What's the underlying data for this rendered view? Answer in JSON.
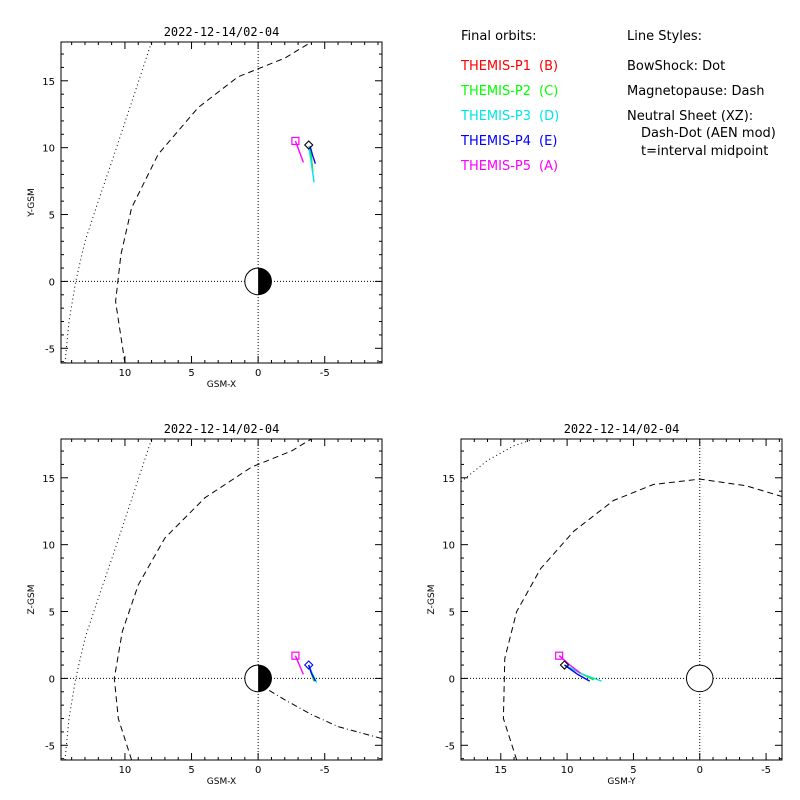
{
  "legend": {
    "orbits_title": "Final orbits:",
    "probes": [
      {
        "label": "THEMIS-P1",
        "code": "(B)",
        "color": "#ff0000"
      },
      {
        "label": "THEMIS-P2",
        "code": "(C)",
        "color": "#00ff00"
      },
      {
        "label": "THEMIS-P3",
        "code": "(D)",
        "color": "#00e5e5"
      },
      {
        "label": "THEMIS-P4",
        "code": "(E)",
        "color": "#0000ff"
      },
      {
        "label": "THEMIS-P5",
        "code": "(A)",
        "color": "#ff00ff"
      }
    ],
    "styles_title": "Line Styles:",
    "styles": [
      "BowShock: Dot",
      "Magnetopause: Dash",
      "Neutral Sheet (XZ):",
      "Dash-Dot (AEN mod)",
      "t=interval midpoint"
    ]
  },
  "chart_data": [
    {
      "type": "line",
      "title": "2022-12-14/02-04",
      "xlabel": "GSM-X",
      "ylabel": "Y-GSM",
      "xlim": [
        14.8,
        -9.3
      ],
      "ylim": [
        -6.1,
        17.9
      ],
      "xticks": [
        10,
        5,
        0,
        -5
      ],
      "yticks": [
        -5,
        0,
        5,
        10,
        15
      ],
      "earth": {
        "x": 0,
        "y": 0,
        "r": 1,
        "shaded": true
      },
      "series": [
        {
          "name": "BowShock",
          "style": "dot",
          "color": "#000000",
          "x": [
            14.5,
            14.2,
            13.7,
            13.0,
            12.0,
            10.8,
            9.3,
            8.0
          ],
          "y": [
            -6.1,
            -3.0,
            0.0,
            3.0,
            6.0,
            9.5,
            14.0,
            17.9
          ]
        },
        {
          "name": "Magnetopause",
          "style": "dash",
          "color": "#000000",
          "x": [
            10.0,
            10.7,
            10.3,
            9.5,
            7.5,
            4.5,
            1.5,
            -2.0,
            -4.0
          ],
          "y": [
            -6.1,
            -1.5,
            2.0,
            5.5,
            9.5,
            13.0,
            15.3,
            16.7,
            17.9
          ]
        },
        {
          "name": "THEMIS-P1",
          "color": "#ff0000",
          "x": [
            -3.9,
            -4.0,
            -4.1
          ],
          "y": [
            10.0,
            9.2,
            8.2
          ]
        },
        {
          "name": "THEMIS-P2",
          "color": "#00ff00",
          "x": [
            -3.9,
            -4.0,
            -4.1
          ],
          "y": [
            10.0,
            9.2,
            8.2
          ]
        },
        {
          "name": "THEMIS-P3",
          "color": "#00e5e5",
          "x": [
            -3.8,
            -4.0,
            -4.2
          ],
          "y": [
            10.1,
            8.8,
            7.4
          ]
        },
        {
          "name": "THEMIS-P4",
          "color": "#0000ff",
          "x": [
            -3.9,
            -4.1,
            -4.3
          ],
          "y": [
            10.1,
            9.4,
            8.8
          ]
        },
        {
          "name": "THEMIS-P5",
          "color": "#ff00ff",
          "x": [
            -2.8,
            -3.1,
            -3.4
          ],
          "y": [
            10.5,
            9.7,
            8.9
          ]
        }
      ],
      "markers": [
        {
          "shape": "diamond",
          "color": "#000000",
          "x": -3.8,
          "y": 10.2
        },
        {
          "shape": "square",
          "color": "#ff00ff",
          "x": -2.8,
          "y": 10.5
        }
      ]
    },
    {
      "type": "line",
      "title": "2022-12-14/02-04",
      "xlabel": "GSM-X",
      "ylabel": "Z-GSM",
      "xlim": [
        14.8,
        -9.3
      ],
      "ylim": [
        -6.1,
        17.9
      ],
      "xticks": [
        10,
        5,
        0,
        -5
      ],
      "yticks": [
        -5,
        0,
        5,
        10,
        15
      ],
      "earth": {
        "x": 0,
        "y": 0,
        "r": 1,
        "shaded": true
      },
      "series": [
        {
          "name": "BowShock",
          "style": "dot",
          "color": "#000000",
          "x": [
            14.5,
            14.2,
            13.7,
            13.0,
            12.0,
            10.8,
            9.3,
            8.0
          ],
          "y": [
            -6.1,
            -3.0,
            0.0,
            3.0,
            6.0,
            9.5,
            14.0,
            17.9
          ]
        },
        {
          "name": "Magnetopause",
          "style": "dash",
          "color": "#000000",
          "x": [
            9.5,
            10.5,
            10.8,
            10.2,
            9.0,
            7.0,
            4.0,
            0.5,
            -2.5,
            -4.0
          ],
          "y": [
            -6.1,
            -3.0,
            0.0,
            3.5,
            7.0,
            10.5,
            13.5,
            15.8,
            17.0,
            17.9
          ]
        },
        {
          "name": "Neutral Sheet",
          "style": "dashdot",
          "color": "#000000",
          "x": [
            0.0,
            -2.0,
            -4.0,
            -6.0,
            -9.3
          ],
          "y": [
            -0.4,
            -1.6,
            -2.7,
            -3.6,
            -4.5
          ]
        },
        {
          "name": "THEMIS-P1",
          "color": "#ff0000",
          "x": [
            -3.8,
            -4.0,
            -4.2
          ],
          "y": [
            1.0,
            0.4,
            -0.2
          ]
        },
        {
          "name": "THEMIS-P2",
          "color": "#00ff00",
          "x": [
            -3.8,
            -4.0,
            -4.2
          ],
          "y": [
            1.0,
            0.4,
            -0.2
          ]
        },
        {
          "name": "THEMIS-P3",
          "color": "#00e5e5",
          "x": [
            -3.8,
            -4.1,
            -4.4
          ],
          "y": [
            1.0,
            0.3,
            -0.3
          ]
        },
        {
          "name": "THEMIS-P4",
          "color": "#0000ff",
          "x": [
            -3.8,
            -4.0,
            -4.3
          ],
          "y": [
            1.0,
            0.4,
            -0.2
          ]
        },
        {
          "name": "THEMIS-P5",
          "color": "#ff00ff",
          "x": [
            -2.8,
            -3.1,
            -3.4
          ],
          "y": [
            1.7,
            1.0,
            0.3
          ]
        }
      ],
      "markers": [
        {
          "shape": "diamond",
          "color": "#0000ff",
          "x": -3.8,
          "y": 1.0
        },
        {
          "shape": "square",
          "color": "#ff00ff",
          "x": -2.8,
          "y": 1.7
        }
      ]
    },
    {
      "type": "line",
      "title": "2022-12-14/02-04",
      "xlabel": "GSM-Y",
      "ylabel": "Z-GSM",
      "xlim": [
        18.0,
        -6.2
      ],
      "ylim": [
        -6.1,
        17.9
      ],
      "xticks": [
        15,
        10,
        5,
        0,
        -5
      ],
      "yticks": [
        -5,
        0,
        5,
        10,
        15
      ],
      "earth": {
        "x": 0,
        "y": 0,
        "r": 1,
        "shaded": false
      },
      "series": [
        {
          "name": "BowShock",
          "style": "dot",
          "color": "#000000",
          "x": [
            18.0,
            16.0,
            14.0,
            12.5
          ],
          "y": [
            14.7,
            16.3,
            17.4,
            17.9
          ]
        },
        {
          "name": "Magnetopause",
          "style": "dash",
          "color": "#000000",
          "x": [
            13.8,
            14.8,
            14.7,
            13.8,
            12.0,
            9.5,
            6.5,
            3.5,
            0.0,
            -3.5,
            -6.2
          ],
          "y": [
            -6.1,
            -3.0,
            1.5,
            5.0,
            8.2,
            11.0,
            13.3,
            14.5,
            14.9,
            14.4,
            13.6
          ]
        },
        {
          "name": "THEMIS-P1",
          "color": "#ff0000",
          "x": [
            10.2,
            9.0,
            8.0
          ],
          "y": [
            1.0,
            0.4,
            -0.1
          ]
        },
        {
          "name": "THEMIS-P2",
          "color": "#00ff00",
          "x": [
            10.2,
            9.0,
            8.0
          ],
          "y": [
            1.0,
            0.4,
            -0.1
          ]
        },
        {
          "name": "THEMIS-P3",
          "color": "#00e5e5",
          "x": [
            10.2,
            8.8,
            7.4
          ],
          "y": [
            1.0,
            0.3,
            -0.2
          ]
        },
        {
          "name": "THEMIS-P4",
          "color": "#0000ff",
          "x": [
            10.2,
            9.2,
            8.3
          ],
          "y": [
            1.0,
            0.3,
            -0.2
          ]
        },
        {
          "name": "THEMIS-P5",
          "color": "#ff00ff",
          "x": [
            10.6,
            9.8,
            9.0
          ],
          "y": [
            1.7,
            1.0,
            0.4
          ]
        }
      ],
      "markers": [
        {
          "shape": "diamond",
          "color": "#000000",
          "x": 10.2,
          "y": 1.0
        },
        {
          "shape": "square",
          "color": "#ff00ff",
          "x": 10.6,
          "y": 1.7
        }
      ]
    }
  ]
}
